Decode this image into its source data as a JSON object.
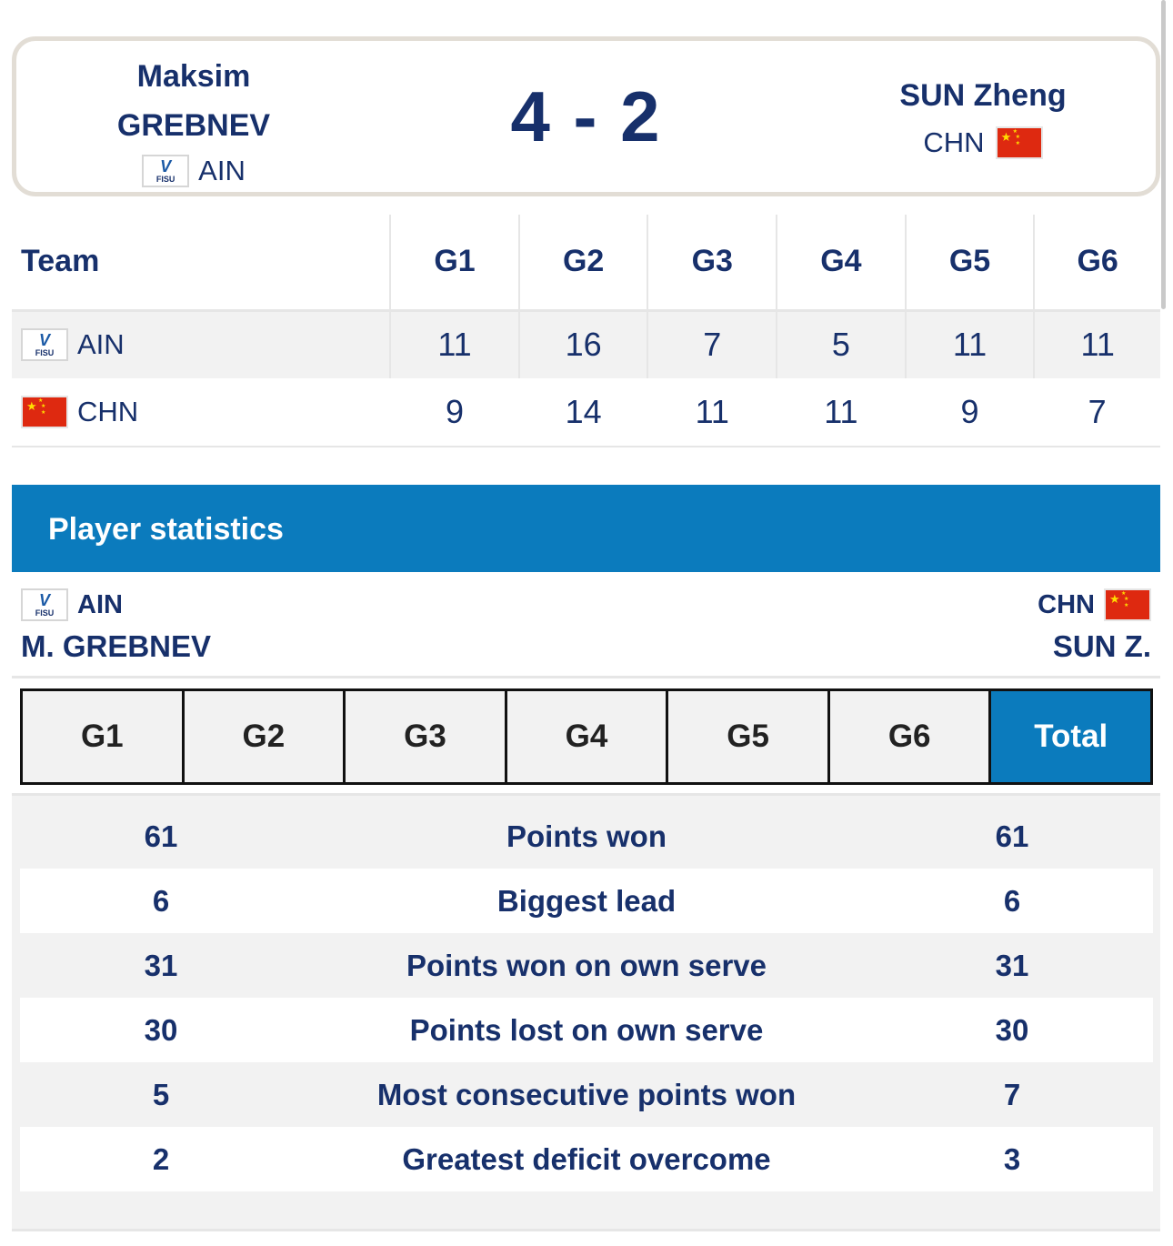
{
  "match": {
    "home": {
      "first_name": "Maksim",
      "last_name": "GREBNEV",
      "team": "AIN",
      "flag": "fisu-flag"
    },
    "score": "4 - 2",
    "away": {
      "name": "SUN Zheng",
      "team": "CHN",
      "flag": "china-flag"
    }
  },
  "fisu_logo": {
    "mark": "V",
    "text": "FISU"
  },
  "games_table": {
    "headers": [
      "Team",
      "G1",
      "G2",
      "G3",
      "G4",
      "G5",
      "G6"
    ],
    "rows": [
      {
        "team": "AIN",
        "scores": [
          "11",
          "16",
          "7",
          "5",
          "11",
          "11"
        ]
      },
      {
        "team": "CHN",
        "scores": [
          "9",
          "14",
          "11",
          "11",
          "9",
          "7"
        ]
      }
    ]
  },
  "player_statistics": {
    "title": "Player statistics",
    "left": {
      "team": "AIN",
      "player": "M. GREBNEV"
    },
    "right": {
      "team": "CHN",
      "player": "SUN Z."
    },
    "tabs": [
      "G1",
      "G2",
      "G3",
      "G4",
      "G5",
      "G6",
      "Total"
    ],
    "active_tab": "Total",
    "rows": [
      {
        "left": "61",
        "label": "Points won",
        "right": "61"
      },
      {
        "left": "6",
        "label": "Biggest lead",
        "right": "6"
      },
      {
        "left": "31",
        "label": "Points won on own serve",
        "right": "31"
      },
      {
        "left": "30",
        "label": "Points lost on own serve",
        "right": "30"
      },
      {
        "left": "5",
        "label": "Most consecutive points won",
        "right": "7"
      },
      {
        "left": "2",
        "label": "Greatest deficit overcome",
        "right": "3"
      }
    ]
  },
  "colors": {
    "navy": "#17306b",
    "accent_blue": "#0b7bbd",
    "row_gray": "#f2f2f2",
    "china_red": "#de2910",
    "china_star": "#ffde00"
  }
}
